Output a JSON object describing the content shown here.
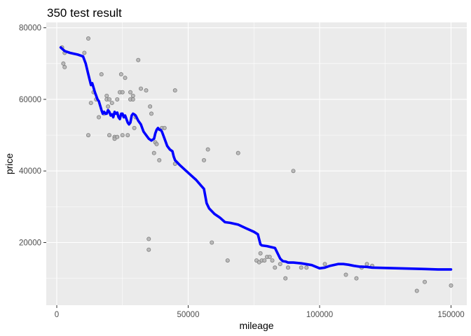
{
  "chart_data": {
    "type": "scatter",
    "title": "350 test result",
    "xlabel": "mileage",
    "ylabel": "price",
    "xlim": [
      -4000,
      156000
    ],
    "ylim": [
      2500,
      81500
    ],
    "x_ticks": [
      0,
      50000,
      100000,
      150000
    ],
    "x_tick_labels": [
      "0",
      "50000",
      "100000",
      "150000"
    ],
    "y_ticks": [
      20000,
      40000,
      60000,
      80000
    ],
    "y_tick_labels": [
      "20000",
      "40000",
      "60000",
      "80000"
    ],
    "grid": true,
    "legend": "none",
    "colors": {
      "panel_bg": "#ebebeb",
      "grid": "#ffffff",
      "points_fill": "#b3b3b3",
      "points_stroke": "#7f7f7f",
      "fit_line": "#0000ff"
    },
    "series": [
      {
        "type": "scatter",
        "x": [
          2000,
          2500,
          3000,
          3000,
          10500,
          12000,
          12000,
          13000,
          14000,
          15000,
          16000,
          17000,
          18000,
          19000,
          19000,
          19500,
          20000,
          20000,
          21000,
          22000,
          22000,
          23000,
          23000,
          24000,
          24500,
          25000,
          25000,
          26000,
          27000,
          28000,
          28000,
          29000,
          29000,
          29500,
          30000,
          31000,
          32000,
          34000,
          35000,
          35000,
          35500,
          36000,
          37000,
          37500,
          38000,
          39000,
          40000,
          41000,
          45000,
          45000,
          56000,
          57500,
          59000,
          65000,
          69000,
          76000,
          77000,
          77500,
          78000,
          79000,
          80000,
          81000,
          82000,
          83000,
          85000,
          87000,
          88000,
          90000,
          93000,
          95000,
          102000,
          110000,
          114000,
          116000,
          118000,
          120000,
          137000,
          140000,
          150000
        ],
        "y": [
          74500,
          70000,
          69000,
          73000,
          73000,
          77000,
          50000,
          59000,
          62000,
          60000,
          55000,
          67000,
          56000,
          61000,
          60000,
          58000,
          50000,
          60000,
          59000,
          49500,
          49000,
          60000,
          49500,
          62000,
          67000,
          62000,
          50000,
          66000,
          50000,
          62000,
          60000,
          60000,
          61000,
          52000,
          55000,
          71000,
          63000,
          62500,
          21000,
          18000,
          58000,
          56000,
          45000,
          48000,
          47500,
          43000,
          52000,
          52000,
          62500,
          42000,
          43000,
          46000,
          20000,
          15000,
          45000,
          15000,
          14500,
          17000,
          15000,
          15000,
          16000,
          16000,
          15000,
          13000,
          14000,
          10000,
          13000,
          40000,
          13000,
          13000,
          14000,
          11000,
          10000,
          13000,
          14000,
          13500,
          6500,
          9000,
          8000
        ]
      },
      {
        "type": "line",
        "x": [
          1500,
          3000,
          5000,
          8000,
          10000,
          11000,
          12000,
          13000,
          13500,
          14500,
          15500,
          16000,
          17000,
          17500,
          18000,
          18500,
          19000,
          19500,
          20000,
          20500,
          21000,
          21500,
          22000,
          22500,
          23000,
          23500,
          24000,
          24500,
          25000,
          25500,
          26000,
          26500,
          27000,
          27500,
          28000,
          28500,
          29000,
          29500,
          30000,
          31000,
          32000,
          33000,
          34000,
          35000,
          36000,
          37000,
          37500,
          38000,
          38500,
          39000,
          39500,
          40000,
          41000,
          42000,
          43000,
          44000,
          44500,
          45000,
          47000,
          50000,
          53000,
          55000,
          56000,
          57000,
          58000,
          60000,
          62000,
          64000,
          66000,
          69000,
          72000,
          75000,
          76500,
          77500,
          78000,
          80000,
          83000,
          85000,
          86000,
          87000,
          88000,
          90000,
          93000,
          97000,
          100000,
          102000,
          104000,
          107000,
          109000,
          111000,
          113000,
          115000,
          118000,
          120000,
          125000,
          130000,
          135000,
          140000,
          145000,
          150000
        ],
        "y": [
          74500,
          73500,
          73000,
          72500,
          72000,
          70000,
          67000,
          64000,
          64500,
          62000,
          60000,
          59500,
          57000,
          56000,
          56500,
          56000,
          56000,
          57000,
          56500,
          55500,
          55800,
          55000,
          56500,
          56000,
          56300,
          55000,
          54500,
          56000,
          56000,
          55000,
          55500,
          54500,
          53500,
          53000,
          53500,
          55500,
          56000,
          55800,
          55500,
          54000,
          53000,
          51000,
          50000,
          49000,
          48500,
          49000,
          50500,
          51500,
          52000,
          51500,
          51500,
          51000,
          49000,
          47000,
          46000,
          45500,
          44000,
          43000,
          41500,
          39500,
          37500,
          35800,
          35000,
          31000,
          29500,
          28000,
          27000,
          25700,
          25500,
          25000,
          24000,
          23000,
          22300,
          19500,
          19200,
          19000,
          18500,
          15500,
          14800,
          14700,
          14400,
          14400,
          14200,
          13700,
          12800,
          13000,
          13500,
          14000,
          14000,
          13800,
          13500,
          13300,
          13200,
          13000,
          12900,
          12800,
          12700,
          12600,
          12500,
          12500
        ]
      }
    ]
  }
}
